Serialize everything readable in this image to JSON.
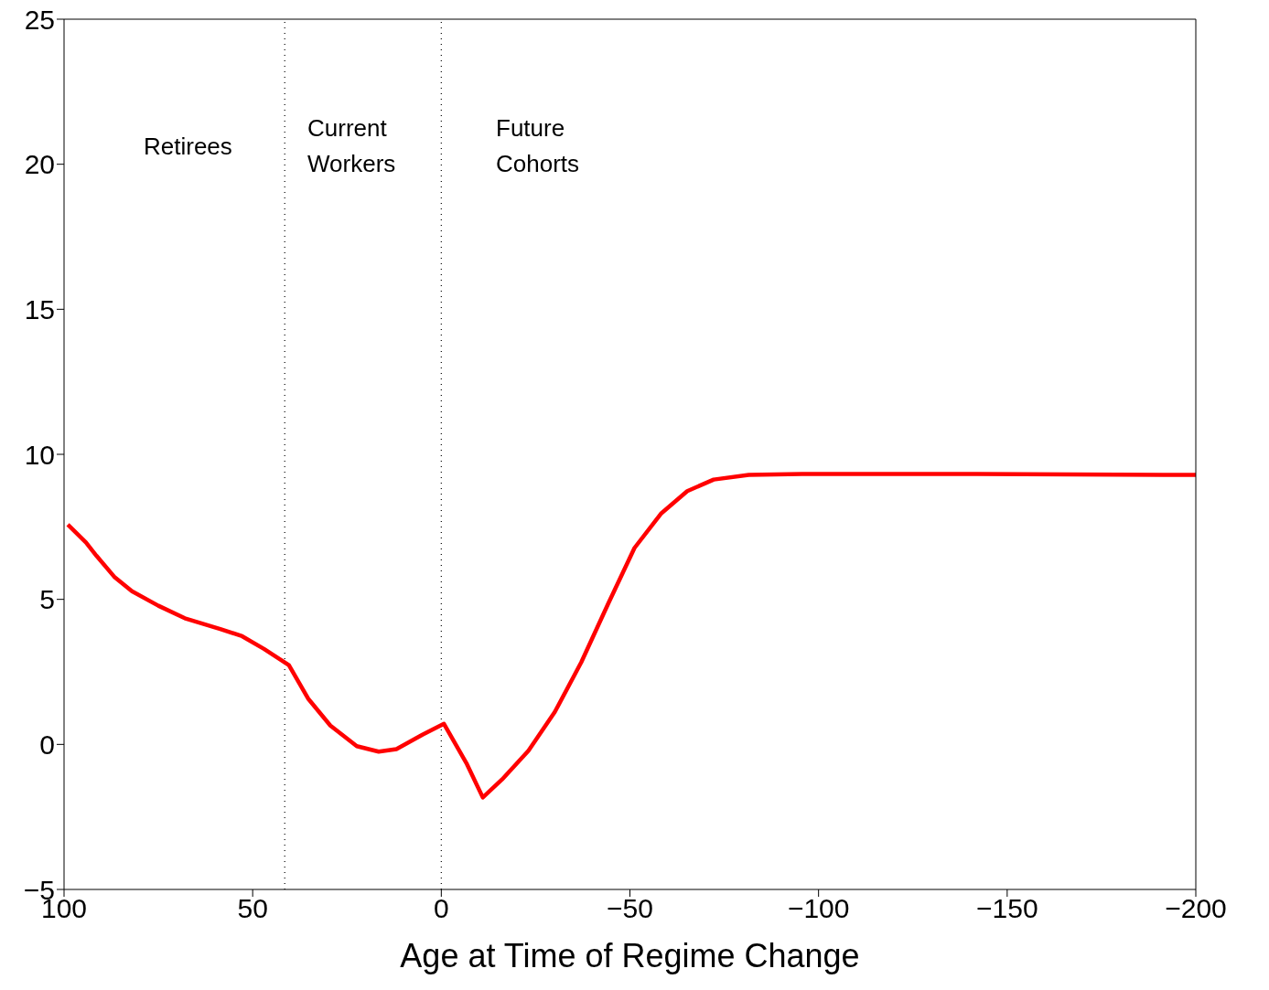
{
  "chart_data": {
    "type": "line",
    "xlabel": "Age at Time of Regime Change",
    "xlim": [
      100,
      -200
    ],
    "xticks": [
      100,
      50,
      0,
      {
        "value": -50,
        "label": "−50"
      },
      {
        "value": -100,
        "label": "−100"
      },
      {
        "value": -150,
        "label": "−150"
      },
      {
        "value": -200,
        "label": "−200"
      }
    ],
    "ylim": [
      -5,
      25
    ],
    "yticks": [
      {
        "value": -5,
        "label": "−5"
      },
      0,
      5,
      10,
      15,
      20,
      25
    ],
    "marker": "none",
    "line_style": "solid",
    "ref_lines": [
      {
        "axis": "x",
        "value": 41.5,
        "color": "#000000",
        "line_style": "dotted"
      },
      {
        "axis": "x",
        "value": 0,
        "color": "#000000",
        "line_style": "dotted"
      }
    ],
    "annotations": [
      "Retirees",
      "Current\nWorkers",
      "Future\nCohorts"
    ],
    "series": [
      {
        "color": "#ff0000",
        "x": [
          99,
          94.2,
          91.4,
          86.7,
          82,
          75,
          68,
          58.6,
          52.8,
          47,
          40.4,
          35.3,
          29.4,
          22.4,
          16.6,
          11.9,
          4.9,
          -0.7,
          -3.3,
          -6.8,
          -11,
          -16.1,
          -23.1,
          -30.1,
          -37.1,
          -44.2,
          -51.2,
          -58.2,
          -65.2,
          -72.2,
          -81.5,
          -95.6,
          -142,
          -200
        ],
        "values": [
          7.58,
          6.96,
          6.5,
          5.78,
          5.28,
          4.78,
          4.35,
          3.98,
          3.73,
          3.29,
          2.73,
          1.58,
          0.65,
          -0.06,
          -0.25,
          -0.16,
          0.34,
          0.71,
          0.12,
          -0.68,
          -1.83,
          -1.21,
          -0.22,
          1.12,
          2.83,
          4.84,
          6.77,
          7.95,
          8.73,
          9.13,
          9.29,
          9.32,
          9.32,
          9.29
        ]
      }
    ]
  }
}
